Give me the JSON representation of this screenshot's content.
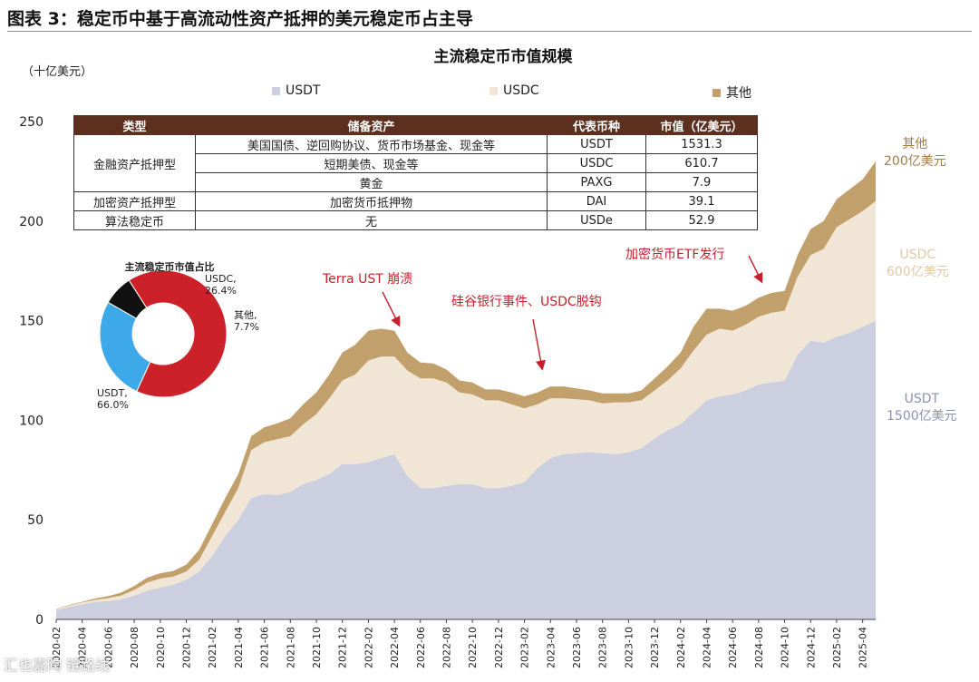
{
  "figure_title": "图表 3：稳定币中基于高流动性资产抵押的美元稳定币占主导",
  "footer_badge": "汇也嘉陶 链路线",
  "colors": {
    "usdt": "#cbcfdf",
    "usdc": "#f1e6d6",
    "other": "#c2a06c",
    "donut_usdt": "#cc2129",
    "donut_usdc": "#3ea9e9",
    "donut_other": "#111111",
    "table_header": "#5c2f1f",
    "annotation": "#c8202b"
  },
  "table": {
    "headers": [
      "类型",
      "储备资产",
      "代表币种",
      "市值（亿美元）"
    ],
    "rows": [
      {
        "type": "金融资产抵押型",
        "reserve": "美国国债、逆回购协议、货币市场基金、现金等",
        "coin": "USDT",
        "value": "1531.3"
      },
      {
        "type": "",
        "reserve": "短期美债、现金等",
        "coin": "USDC",
        "value": "610.7"
      },
      {
        "type": "",
        "reserve": "黄金",
        "coin": "PAXG",
        "value": "7.9"
      },
      {
        "type": "加密资产抵押型",
        "reserve": "加密货币抵押物",
        "coin": "DAI",
        "value": "39.1"
      },
      {
        "type": "算法稳定币",
        "reserve": "无",
        "coin": "USDe",
        "value": "52.9"
      }
    ]
  },
  "donut": {
    "title": "主流稳定币市值占比",
    "slices": [
      {
        "label": "USDT,",
        "value_text": "66.0%",
        "value": 66.0
      },
      {
        "label": "USDC,",
        "value_text": "26.4%",
        "value": 26.4
      },
      {
        "label": "其他,",
        "value_text": "7.7%",
        "value": 7.7
      }
    ]
  },
  "annotations": [
    {
      "text": "Terra UST 崩溃"
    },
    {
      "text": "硅谷银行事件、USDC脱钩"
    },
    {
      "text": "加密货币ETF发行"
    }
  ],
  "side_labels": {
    "other_line1": "其他",
    "other_line2": "200亿美元",
    "usdc_line1": "USDC",
    "usdc_line2": "600亿美元",
    "usdt_line1": "USDT",
    "usdt_line2": "1500亿美元"
  },
  "chart_data": {
    "type": "area",
    "stacked": true,
    "title": "主流稳定币市值规模",
    "ylabel": "（十亿美元）",
    "ylim": [
      0,
      250
    ],
    "yticks": [
      0,
      50,
      100,
      150,
      200,
      250
    ],
    "grid": false,
    "legend_position": "top",
    "x": [
      "2020-02",
      "2020-03",
      "2020-04",
      "2020-05",
      "2020-06",
      "2020-07",
      "2020-08",
      "2020-09",
      "2020-10",
      "2020-11",
      "2020-12",
      "2021-01",
      "2021-02",
      "2021-03",
      "2021-04",
      "2021-05",
      "2021-06",
      "2021-07",
      "2021-08",
      "2021-09",
      "2021-10",
      "2021-11",
      "2021-12",
      "2022-01",
      "2022-02",
      "2022-03",
      "2022-04",
      "2022-05",
      "2022-06",
      "2022-07",
      "2022-08",
      "2022-09",
      "2022-10",
      "2022-11",
      "2022-12",
      "2023-01",
      "2023-02",
      "2023-03",
      "2023-04",
      "2023-05",
      "2023-06",
      "2023-07",
      "2023-08",
      "2023-09",
      "2023-10",
      "2023-11",
      "2023-12",
      "2024-01",
      "2024-02",
      "2024-03",
      "2024-04",
      "2024-05",
      "2024-06",
      "2024-07",
      "2024-08",
      "2024-09",
      "2024-10",
      "2024-11",
      "2024-12",
      "2025-01",
      "2025-02",
      "2025-03",
      "2025-04",
      "2025-05"
    ],
    "xtick_labels": [
      "2020-02",
      "2020-04",
      "2020-06",
      "2020-08",
      "2020-10",
      "2020-12",
      "2021-02",
      "2021-04",
      "2021-06",
      "2021-08",
      "2021-10",
      "2021-12",
      "2022-02",
      "2022-04",
      "2022-06",
      "2022-08",
      "2022-10",
      "2022-12",
      "2023-02",
      "2023-04",
      "2023-06",
      "2023-08",
      "2023-10",
      "2023-12",
      "2024-02",
      "2024-04",
      "2024-06",
      "2024-08",
      "2024-10",
      "2024-12",
      "2025-02",
      "2025-04"
    ],
    "series": [
      {
        "name": "USDT",
        "values": [
          4.6,
          6.3,
          7.6,
          8.8,
          9.2,
          10.0,
          12.0,
          14.5,
          16.0,
          17.5,
          20.0,
          24.0,
          32.0,
          42.0,
          50.0,
          61.0,
          63.0,
          62.5,
          64.0,
          68.0,
          70.0,
          73.0,
          78.0,
          78.0,
          79.0,
          81.0,
          83.0,
          72.0,
          66.0,
          66.0,
          67.0,
          68.0,
          68.0,
          66.0,
          66.0,
          67.0,
          69.0,
          76.0,
          81.0,
          83.0,
          83.5,
          84.0,
          83.5,
          83.0,
          84.0,
          86.0,
          91.0,
          95.0,
          98.0,
          104.0,
          110.0,
          112.0,
          113.0,
          115.0,
          118.0,
          119.0,
          120.0,
          133.0,
          140.0,
          139.0,
          142.0,
          144.0,
          147.0,
          150.0
        ]
      },
      {
        "name": "USDC",
        "values": [
          0.5,
          0.7,
          0.9,
          1.0,
          1.5,
          2.0,
          2.8,
          4.0,
          4.5,
          4.0,
          4.0,
          6.0,
          10.0,
          12.0,
          16.0,
          24.0,
          26.0,
          28.0,
          28.0,
          30.0,
          33.0,
          38.0,
          42.0,
          45.0,
          51.0,
          51.0,
          49.0,
          53.0,
          55.0,
          55.0,
          52.0,
          46.0,
          45.0,
          44.0,
          44.0,
          41.0,
          37.0,
          32.0,
          30.0,
          28.0,
          27.0,
          26.0,
          25.0,
          26.0,
          25.0,
          24.0,
          24.0,
          25.0,
          28.0,
          31.0,
          33.0,
          34.0,
          32.0,
          33.0,
          34.0,
          35.0,
          35.0,
          39.0,
          43.0,
          47.0,
          55.0,
          57.0,
          58.0,
          60.0
        ]
      },
      {
        "name": "其他",
        "values": [
          0.2,
          0.3,
          0.4,
          0.7,
          1.0,
          1.5,
          2.0,
          2.5,
          2.7,
          2.8,
          3.5,
          5.0,
          6.0,
          7.0,
          7.0,
          7.0,
          7.5,
          8.0,
          9.0,
          10.0,
          11.0,
          12.0,
          14.0,
          15.0,
          15.0,
          14.0,
          13.0,
          9.0,
          8.0,
          7.5,
          6.5,
          6.0,
          6.0,
          5.5,
          5.5,
          6.0,
          6.0,
          6.0,
          6.0,
          6.0,
          5.5,
          5.0,
          5.0,
          4.5,
          4.5,
          5.0,
          6.0,
          7.0,
          8.0,
          12.0,
          13.0,
          10.0,
          10.0,
          9.5,
          9.5,
          10.0,
          10.0,
          11.0,
          13.0,
          14.0,
          14.0,
          15.0,
          16.0,
          20.0
        ]
      }
    ]
  }
}
